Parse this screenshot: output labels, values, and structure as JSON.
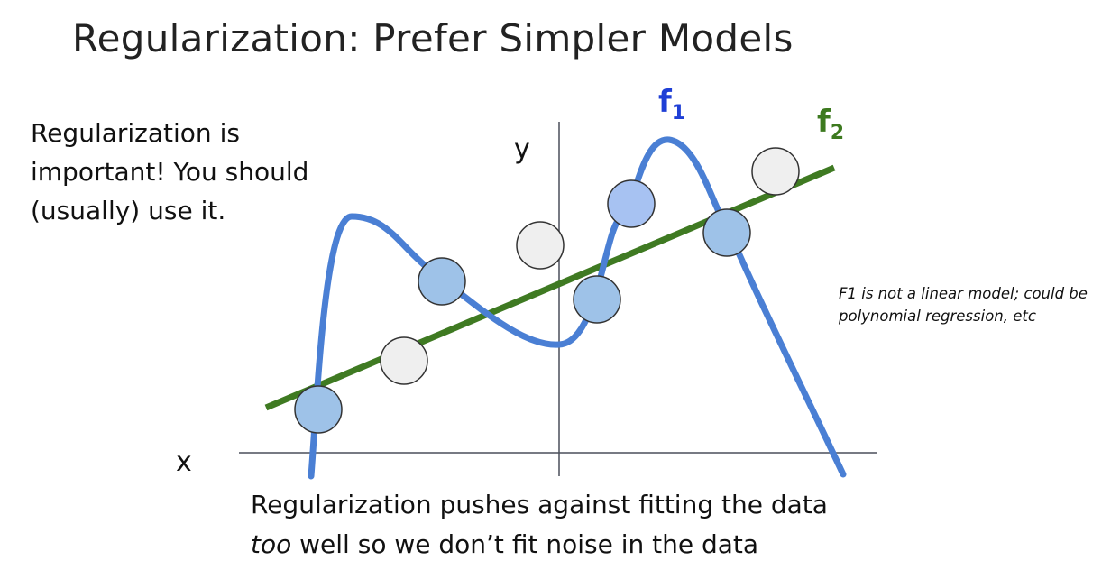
{
  "title": "Regularization: Prefer Simpler Models",
  "left_note": "Regularization is important! You should (usually) use it.",
  "side_note": "F1 is not a linear model; could be polynomial regression, etc",
  "bottom_note": {
    "emphasis": "too",
    "line1": "Regularization pushes against fitting the data",
    "line2_rest": " well so we don’t fit noise in the data"
  },
  "axes": {
    "x_label": "x",
    "y_label": "y"
  },
  "curves": {
    "f1": {
      "base": "f",
      "sub": "1",
      "color": "#1f3fd6",
      "line_color": "#4a7fd4"
    },
    "f2": {
      "base": "f",
      "sub": "2",
      "color": "#3d7a1f",
      "line_color": "#3f7a22"
    }
  },
  "colors": {
    "point_blue": "#9ec2e8",
    "point_grey": "#efefef",
    "point_highlight": "#a7c2f2"
  }
}
